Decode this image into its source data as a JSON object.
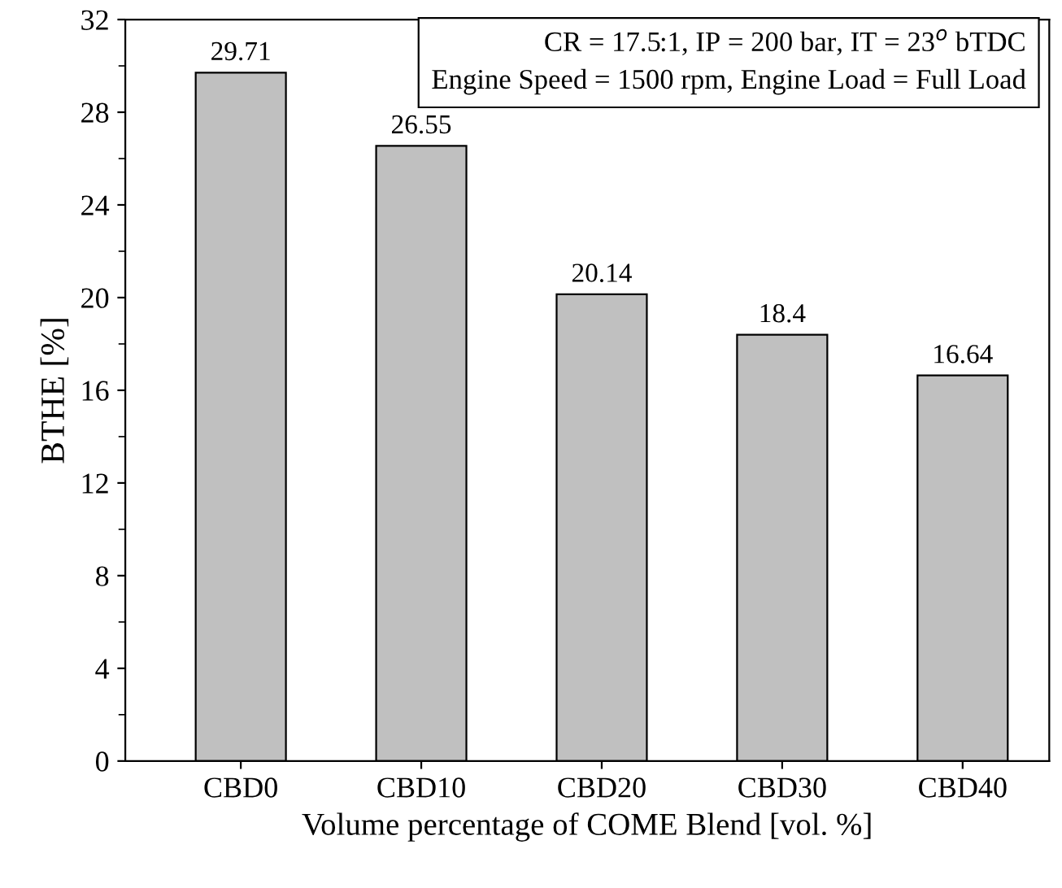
{
  "chart_data": {
    "type": "bar",
    "categories": [
      "CBD0",
      "CBD10",
      "CBD20",
      "CBD30",
      "CBD40"
    ],
    "values": [
      29.71,
      26.55,
      20.14,
      18.4,
      16.64
    ],
    "color": "#c0c0c0",
    "xlabel": "Volume percentage of COME Blend [vol. %]",
    "ylabel": "BTHE [%]",
    "ylim": [
      0,
      32
    ],
    "yticks": [
      0,
      4,
      8,
      12,
      16,
      20,
      24,
      28,
      32
    ],
    "data_labels": true,
    "grid": false,
    "legend": false,
    "annotations": [
      "CR = 17.5:1, IP = 200 bar, IT = 23$^{o}$ bTDC",
      "Engine Speed = 1500 rpm, Engine Load = Full Load"
    ]
  }
}
